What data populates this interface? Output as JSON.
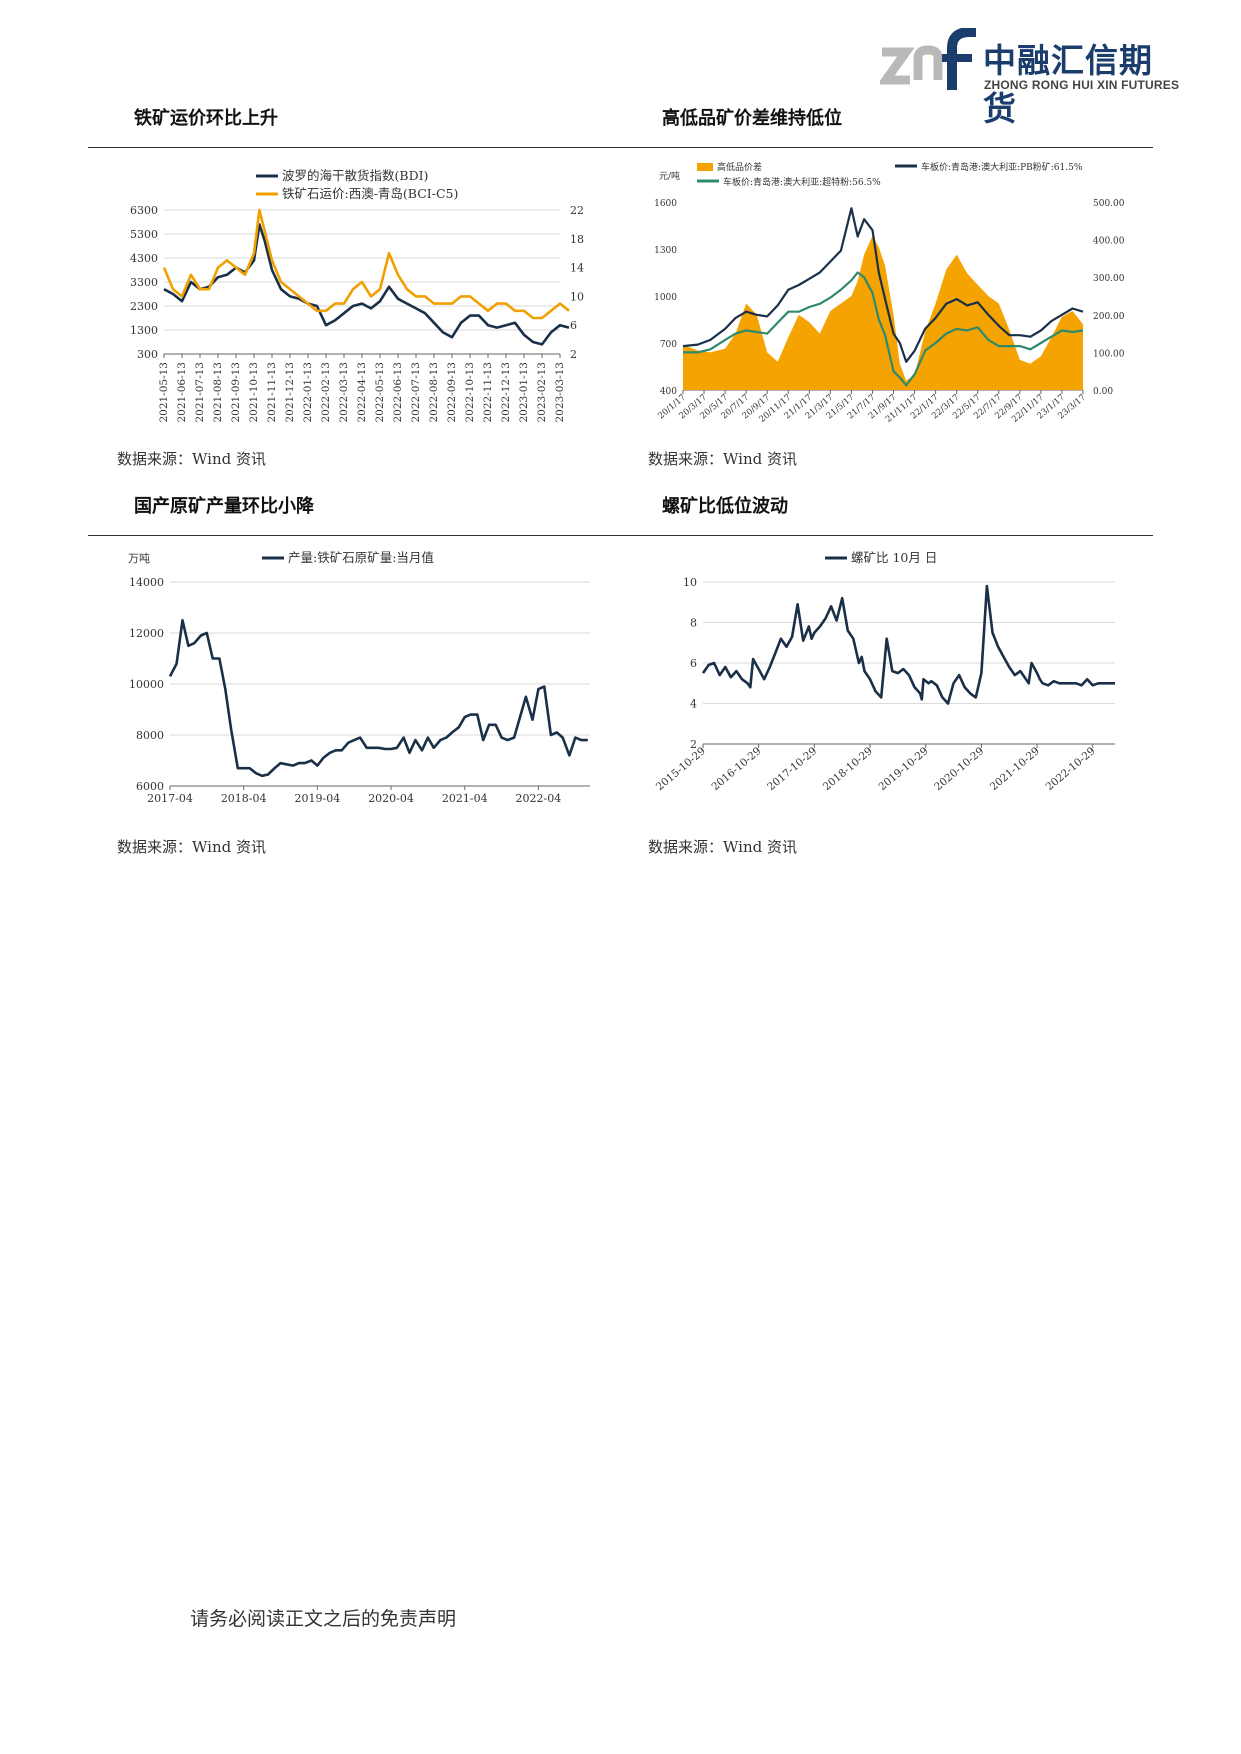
{
  "header": {
    "logo_mark": "znf",
    "company_cn": "中融汇信期货",
    "company_en": "ZHONG RONG HUI XIN FUTURES",
    "colors": {
      "grey": "#b9b9b9",
      "navy": "#1b3d6b"
    }
  },
  "sections": [
    {
      "title": "铁矿运价环比上升",
      "source": "数据来源：Wind 资讯"
    },
    {
      "title": "高低品矿价差维持低位",
      "source": "数据来源：Wind 资讯"
    },
    {
      "title": "国产原矿产量环比小降",
      "source": "数据来源：Wind 资讯"
    },
    {
      "title": "螺矿比低位波动",
      "source": "数据来源：Wind 资讯"
    }
  ],
  "footer": {
    "text": "请务必阅读正文之后的免责声明"
  },
  "chart_data": [
    {
      "type": "line",
      "title": "",
      "y_left": {
        "ticks": [
          "6300",
          "5300",
          "4300",
          "3300",
          "2300",
          "1300",
          "300"
        ],
        "range": [
          300,
          6300
        ]
      },
      "y_right": {
        "ticks": [
          "22",
          "18",
          "14",
          "10",
          "6",
          "2"
        ],
        "range": [
          2,
          22
        ]
      },
      "x_labels": [
        "2021-05-13",
        "2021-06-13",
        "2021-07-13",
        "2021-08-13",
        "2021-09-13",
        "2021-10-13",
        "2021-11-13",
        "2021-12-13",
        "2022-01-13",
        "2022-02-13",
        "2022-03-13",
        "2022-04-13",
        "2022-05-13",
        "2022-06-13",
        "2022-07-13",
        "2022-08-13",
        "2022-09-13",
        "2022-10-13",
        "2022-11-13",
        "2022-12-13",
        "2023-01-13",
        "2023-02-13",
        "2023-03-13"
      ],
      "series": [
        {
          "name": "波罗的海干散货指数(BDI)",
          "axis": "left",
          "color": "#1a3049",
          "x": [
            0,
            0.5,
            1,
            1.5,
            2,
            2.5,
            3,
            3.5,
            4,
            4.5,
            5,
            5.3,
            5.6,
            6,
            6.5,
            7,
            7.5,
            8,
            8.5,
            9,
            9.5,
            10,
            10.5,
            11,
            11.5,
            12,
            12.5,
            13,
            13.5,
            14,
            14.5,
            15,
            15.5,
            16,
            16.5,
            17,
            17.5,
            18,
            18.5,
            19,
            19.5,
            20,
            20.5,
            21,
            21.5,
            22,
            22.5
          ],
          "values": [
            3000,
            2800,
            2500,
            3300,
            3000,
            3100,
            3500,
            3600,
            3900,
            3700,
            4200,
            5700,
            5000,
            3800,
            3000,
            2700,
            2600,
            2400,
            2300,
            1500,
            1700,
            2000,
            2300,
            2400,
            2200,
            2500,
            3100,
            2600,
            2400,
            2200,
            2000,
            1600,
            1200,
            1000,
            1600,
            1900,
            1900,
            1500,
            1400,
            1500,
            1600,
            1100,
            800,
            700,
            1200,
            1500,
            1400
          ]
        },
        {
          "name": "铁矿石运价:西澳-青岛(BCI-C5)",
          "axis": "right",
          "color": "#f0a000",
          "x": [
            0,
            0.5,
            1,
            1.5,
            2,
            2.5,
            3,
            3.5,
            4,
            4.5,
            5,
            5.3,
            5.6,
            6,
            6.5,
            7,
            7.5,
            8,
            8.5,
            9,
            9.5,
            10,
            10.5,
            11,
            11.5,
            12,
            12.5,
            13,
            13.5,
            14,
            14.5,
            15,
            15.5,
            16,
            16.5,
            17,
            17.5,
            18,
            18.5,
            19,
            19.5,
            20,
            20.5,
            21,
            21.5,
            22,
            22.5
          ],
          "values": [
            14,
            11,
            10,
            13,
            11,
            11,
            14,
            15,
            14,
            13,
            16,
            22,
            19,
            15,
            12,
            11,
            10,
            9,
            8,
            8,
            9,
            9,
            11,
            12,
            10,
            11,
            16,
            13,
            11,
            10,
            10,
            9,
            9,
            9,
            10,
            10,
            9,
            8,
            9,
            9,
            8,
            8,
            7,
            7,
            8,
            9,
            8
          ]
        }
      ]
    },
    {
      "type": "area",
      "title": "",
      "ylabel": "元/吨",
      "y_left": {
        "ticks": [
          "1600",
          "1300",
          "1000",
          "700",
          "400"
        ],
        "range": [
          400,
          1600
        ]
      },
      "y_right": {
        "ticks": [
          "500.00",
          "400.00",
          "300.00",
          "200.00",
          "100.00",
          "0.00"
        ],
        "range": [
          0,
          500
        ]
      },
      "x_labels": [
        "20/1/17",
        "20/3/17",
        "20/5/17",
        "20/7/17",
        "20/9/17",
        "20/11/17",
        "21/1/17",
        "21/3/17",
        "21/5/17",
        "21/7/17",
        "21/9/17",
        "21/11/17",
        "22/1/17",
        "22/3/17",
        "22/5/17",
        "22/7/17",
        "22/9/17",
        "22/11/17",
        "23/1/17",
        "23/3/17"
      ],
      "series": [
        {
          "name": "高低品价差",
          "axis": "right",
          "kind": "area",
          "color": "#f5a300",
          "x": [
            0,
            0.7,
            1.3,
            2,
            2.5,
            3,
            3.5,
            4,
            4.5,
            5,
            5.5,
            6,
            6.5,
            7,
            7.5,
            8,
            8.3,
            8.6,
            9,
            9.3,
            9.6,
            10,
            10.3,
            10.6,
            11,
            11.5,
            12,
            12.5,
            13,
            13.5,
            14,
            14.5,
            15,
            15.5,
            16,
            16.5,
            17,
            17.5,
            18,
            18.5,
            19
          ],
          "values": [
            120,
            105,
            100,
            110,
            150,
            230,
            200,
            100,
            75,
            140,
            200,
            180,
            150,
            210,
            230,
            250,
            290,
            360,
            410,
            380,
            330,
            200,
            70,
            25,
            40,
            155,
            230,
            320,
            360,
            310,
            280,
            250,
            230,
            160,
            80,
            70,
            90,
            140,
            195,
            210,
            175
          ]
        },
        {
          "name": "车板价:青岛港:澳大利亚:PB粉矿:61.5%",
          "axis": "left",
          "kind": "line",
          "color": "#1a3049",
          "x": [
            0,
            0.7,
            1.3,
            2,
            2.5,
            3,
            3.5,
            4,
            4.5,
            5,
            5.5,
            6,
            6.5,
            7,
            7.5,
            8,
            8.3,
            8.6,
            9,
            9.3,
            9.6,
            10,
            10.3,
            10.6,
            11,
            11.5,
            12,
            12.5,
            13,
            13.5,
            14,
            14.5,
            15,
            15.5,
            16,
            16.5,
            17,
            17.5,
            18,
            18.5,
            19
          ],
          "values": [
            680,
            690,
            720,
            790,
            860,
            900,
            880,
            870,
            940,
            1040,
            1070,
            1110,
            1150,
            1220,
            1290,
            1560,
            1380,
            1490,
            1420,
            1150,
            980,
            760,
            700,
            580,
            650,
            790,
            860,
            950,
            980,
            940,
            960,
            880,
            810,
            750,
            750,
            740,
            780,
            840,
            880,
            920,
            900
          ]
        },
        {
          "name": "车板价:青岛港:澳大利亚:超特粉:56.5%",
          "axis": "left",
          "kind": "line",
          "color": "#2f8a6c",
          "x": [
            0,
            0.7,
            1.3,
            2,
            2.5,
            3,
            3.5,
            4,
            4.5,
            5,
            5.5,
            6,
            6.5,
            7,
            7.5,
            8,
            8.3,
            8.6,
            9,
            9.3,
            9.6,
            10,
            10.3,
            10.6,
            11,
            11.5,
            12,
            12.5,
            13,
            13.5,
            14,
            14.5,
            15,
            15.5,
            16,
            16.5,
            17,
            17.5,
            18,
            18.5,
            19
          ],
          "values": [
            640,
            640,
            660,
            720,
            760,
            780,
            770,
            760,
            830,
            900,
            900,
            930,
            950,
            990,
            1040,
            1100,
            1150,
            1120,
            1020,
            850,
            750,
            520,
            480,
            430,
            500,
            650,
            700,
            760,
            790,
            780,
            800,
            720,
            680,
            680,
            680,
            660,
            700,
            740,
            780,
            770,
            780
          ]
        }
      ]
    },
    {
      "type": "line",
      "title": "",
      "ylabel": "万吨",
      "y_left": {
        "ticks": [
          "14000",
          "12000",
          "10000",
          "8000",
          "6000"
        ],
        "range": [
          6000,
          14000
        ]
      },
      "x_labels": [
        "2017-04",
        "2018-04",
        "2019-04",
        "2020-04",
        "2021-04",
        "2022-04"
      ],
      "series": [
        {
          "name": "产量:铁矿石原矿量:当月值",
          "color": "#1a3049",
          "x": [
            0,
            0.09,
            0.17,
            0.25,
            0.33,
            0.42,
            0.5,
            0.58,
            0.67,
            0.75,
            0.83,
            0.92,
            1,
            1.08,
            1.17,
            1.25,
            1.33,
            1.42,
            1.5,
            1.58,
            1.67,
            1.75,
            1.83,
            1.92,
            2,
            2.08,
            2.17,
            2.25,
            2.33,
            2.42,
            2.5,
            2.58,
            2.67,
            2.75,
            2.83,
            2.92,
            3,
            3.08,
            3.17,
            3.25,
            3.33,
            3.42,
            3.5,
            3.58,
            3.67,
            3.75,
            3.83,
            3.92,
            4,
            4.08,
            4.17,
            4.25,
            4.33,
            4.42,
            4.5,
            4.58,
            4.67,
            4.75,
            4.83,
            4.92,
            5,
            5.08,
            5.17,
            5.25,
            5.33,
            5.42,
            5.5,
            5.58,
            5.67
          ],
          "values": [
            10300,
            10800,
            12500,
            11500,
            11600,
            11900,
            12000,
            11000,
            11000,
            9800,
            8200,
            6700,
            6700,
            6700,
            6500,
            6400,
            6450,
            6700,
            6900,
            6850,
            6800,
            6900,
            6900,
            7000,
            6800,
            7100,
            7300,
            7400,
            7400,
            7700,
            7800,
            7900,
            7500,
            7500,
            7500,
            7450,
            7450,
            7500,
            7900,
            7300,
            7800,
            7400,
            7900,
            7500,
            7800,
            7900,
            8100,
            8300,
            8700,
            8800,
            8800,
            7800,
            8400,
            8400,
            7900,
            7800,
            7900,
            8700,
            9500,
            8600,
            9800,
            9900,
            8000,
            8100,
            7900,
            7200,
            7900,
            7800,
            7800
          ]
        }
      ]
    },
    {
      "type": "line",
      "title": "",
      "y_left": {
        "ticks": [
          "10",
          "8",
          "6",
          "4",
          "2"
        ],
        "range": [
          2,
          10
        ]
      },
      "x_labels": [
        "2015-10-29",
        "2016-10-29",
        "2017-10-29",
        "2018-10-29",
        "2019-10-29",
        "2020-10-29",
        "2021-10-29",
        "2022-10-29"
      ],
      "series": [
        {
          "name": "螺矿比 10月 日",
          "color": "#1a3049",
          "x": [
            0,
            0.1,
            0.2,
            0.3,
            0.4,
            0.5,
            0.6,
            0.7,
            0.8,
            0.85,
            0.9,
            1,
            1.1,
            1.2,
            1.3,
            1.4,
            1.5,
            1.6,
            1.7,
            1.8,
            1.9,
            1.95,
            2,
            2.1,
            2.2,
            2.3,
            2.4,
            2.5,
            2.6,
            2.7,
            2.8,
            2.85,
            2.9,
            3,
            3.1,
            3.2,
            3.3,
            3.4,
            3.5,
            3.6,
            3.7,
            3.8,
            3.9,
            3.93,
            3.96,
            4.05,
            4.1,
            4.2,
            4.3,
            4.4,
            4.5,
            4.6,
            4.7,
            4.8,
            4.9,
            5,
            5.1,
            5.2,
            5.3,
            5.4,
            5.5,
            5.6,
            5.7,
            5.8,
            5.85,
            5.9,
            6,
            6.05,
            6.1,
            6.2,
            6.3,
            6.4,
            6.5,
            6.6,
            6.7,
            6.8,
            6.9,
            7,
            7.1,
            7.2,
            7.3,
            7.4
          ],
          "values": [
            5.5,
            5.9,
            6.0,
            5.4,
            5.8,
            5.3,
            5.6,
            5.2,
            5.0,
            4.8,
            6.2,
            5.7,
            5.2,
            5.8,
            6.5,
            7.2,
            6.8,
            7.3,
            8.9,
            7.1,
            7.8,
            7.2,
            7.5,
            7.8,
            8.2,
            8.8,
            8.1,
            9.2,
            7.6,
            7.2,
            6.0,
            6.3,
            5.6,
            5.2,
            4.6,
            4.3,
            7.2,
            5.6,
            5.5,
            5.7,
            5.4,
            4.8,
            4.5,
            4.2,
            5.2,
            5.0,
            5.1,
            4.9,
            4.3,
            4.0,
            5.0,
            5.4,
            4.8,
            4.5,
            4.3,
            5.5,
            9.8,
            7.5,
            6.8,
            6.3,
            5.8,
            5.4,
            5.6,
            5.2,
            5.0,
            6.0,
            5.5,
            5.2,
            5.0,
            4.9,
            5.1,
            5.0,
            5.0,
            5.0,
            5.0,
            4.9,
            5.2,
            4.9,
            5.0,
            5.0,
            5.0,
            5.0
          ]
        }
      ]
    }
  ]
}
